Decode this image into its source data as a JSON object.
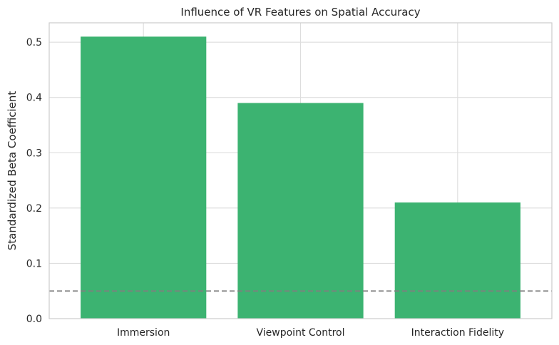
{
  "chart_data": {
    "type": "bar",
    "title": "Influence of VR Features on Spatial Accuracy",
    "xlabel": "",
    "ylabel": "Standardized Beta Coefficient",
    "categories": [
      "Immersion",
      "Viewpoint Control",
      "Interaction Fidelity"
    ],
    "values": [
      0.51,
      0.39,
      0.21
    ],
    "ylim": [
      0,
      0.535
    ],
    "yticks": [
      0.0,
      0.1,
      0.2,
      0.3,
      0.4,
      0.5
    ],
    "ytick_labels": [
      "0.0",
      "0.1",
      "0.2",
      "0.3",
      "0.4",
      "0.5"
    ],
    "reference_line": {
      "y": 0.05,
      "style": "dashed",
      "color": "#808080"
    },
    "bar_color": "#3cb371",
    "grid": true,
    "legend": false
  }
}
